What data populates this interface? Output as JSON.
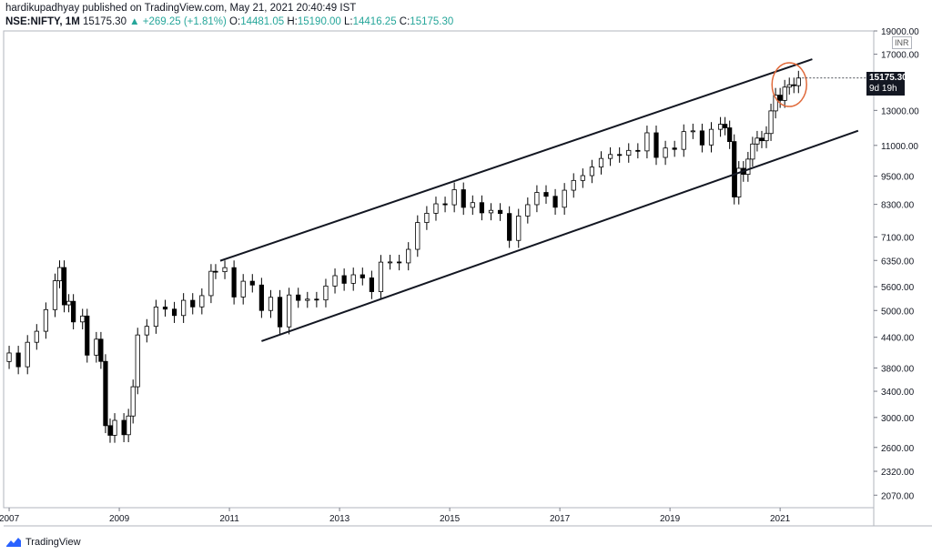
{
  "header": {
    "publisher_line": "hardikupadhyay published on TradingView.com, May 21, 2021 20:40:49 IST",
    "symbol": "NSE:NIFTY, 1M",
    "last": "15175.30",
    "change": "+269.25 (+1.81%)",
    "open_label": "O:",
    "open": "14481.05",
    "high_label": "H:",
    "high": "15190.00",
    "low_label": "L:",
    "low": "14416.25",
    "close_label": "C:",
    "close": "15175.30"
  },
  "price_tag": {
    "price": "15175.30",
    "countdown": "9d 19h"
  },
  "currency_badge": "INR",
  "footer": {
    "brand": "TradingView"
  },
  "colors": {
    "candle_up": "#ffffff",
    "candle_down": "#000000",
    "wick": "#000000",
    "highlight": "#e06a3b",
    "grid": "#e0e3eb"
  },
  "chart_data": {
    "type": "candlestick",
    "symbol": "NSE:NIFTY",
    "interval": "1M",
    "y_scale": "log",
    "ylim": [
      1950,
      19000
    ],
    "y_ticks": [
      "19000.00",
      "17000.00",
      "15175.30",
      "13000.00",
      "11000.00",
      "9500.00",
      "8300.00",
      "7100.00",
      "6350.00",
      "5600.00",
      "5000.00",
      "4400.00",
      "3800.00",
      "3400.00",
      "3000.00",
      "2600.00",
      "2320.00",
      "2070.00"
    ],
    "x_ticks": [
      "2007",
      "2009",
      "2011",
      "2013",
      "2015",
      "2017",
      "2019",
      "2021"
    ],
    "xlim": [
      2006.9,
      2022.7
    ],
    "close_series": [
      {
        "d": "2007-01",
        "c": 4082
      },
      {
        "d": "2007-03",
        "c": 3822
      },
      {
        "d": "2007-05",
        "c": 4296
      },
      {
        "d": "2007-07",
        "c": 4528
      },
      {
        "d": "2007-09",
        "c": 5021
      },
      {
        "d": "2007-11",
        "c": 5762
      },
      {
        "d": "2007-12",
        "c": 6138
      },
      {
        "d": "2008-01",
        "c": 5137
      },
      {
        "d": "2008-02",
        "c": 5224
      },
      {
        "d": "2008-03",
        "c": 4735
      },
      {
        "d": "2008-05",
        "c": 4870
      },
      {
        "d": "2008-06",
        "c": 4040
      },
      {
        "d": "2008-08",
        "c": 4360
      },
      {
        "d": "2008-09",
        "c": 3921
      },
      {
        "d": "2008-10",
        "c": 2885
      },
      {
        "d": "2008-11",
        "c": 2755
      },
      {
        "d": "2008-12",
        "c": 2959
      },
      {
        "d": "2009-02",
        "c": 2763
      },
      {
        "d": "2009-03",
        "c": 3021
      },
      {
        "d": "2009-04",
        "c": 3474
      },
      {
        "d": "2009-05",
        "c": 4449
      },
      {
        "d": "2009-07",
        "c": 4636
      },
      {
        "d": "2009-09",
        "c": 5084
      },
      {
        "d": "2009-11",
        "c": 5033
      },
      {
        "d": "2010-01",
        "c": 4882
      },
      {
        "d": "2010-03",
        "c": 5249
      },
      {
        "d": "2010-05",
        "c": 5087
      },
      {
        "d": "2010-07",
        "c": 5368
      },
      {
        "d": "2010-09",
        "c": 6030
      },
      {
        "d": "2010-10",
        "c": 6018
      },
      {
        "d": "2010-12",
        "c": 6135
      },
      {
        "d": "2011-02",
        "c": 5333
      },
      {
        "d": "2011-04",
        "c": 5750
      },
      {
        "d": "2011-06",
        "c": 5647
      },
      {
        "d": "2011-08",
        "c": 5001
      },
      {
        "d": "2011-10",
        "c": 5326
      },
      {
        "d": "2011-12",
        "c": 4624
      },
      {
        "d": "2012-02",
        "c": 5385
      },
      {
        "d": "2012-04",
        "c": 5248
      },
      {
        "d": "2012-06",
        "c": 5279
      },
      {
        "d": "2012-08",
        "c": 5259
      },
      {
        "d": "2012-10",
        "c": 5620
      },
      {
        "d": "2012-12",
        "c": 5905
      },
      {
        "d": "2013-02",
        "c": 5693
      },
      {
        "d": "2013-04",
        "c": 5930
      },
      {
        "d": "2013-06",
        "c": 5842
      },
      {
        "d": "2013-08",
        "c": 5471
      },
      {
        "d": "2013-10",
        "c": 6299
      },
      {
        "d": "2013-12",
        "c": 6304
      },
      {
        "d": "2014-02",
        "c": 6277
      },
      {
        "d": "2014-04",
        "c": 6696
      },
      {
        "d": "2014-06",
        "c": 7611
      },
      {
        "d": "2014-08",
        "c": 7954
      },
      {
        "d": "2014-10",
        "c": 8322
      },
      {
        "d": "2014-12",
        "c": 8283
      },
      {
        "d": "2015-02",
        "c": 8902
      },
      {
        "d": "2015-04",
        "c": 8182
      },
      {
        "d": "2015-06",
        "c": 8369
      },
      {
        "d": "2015-08",
        "c": 7971
      },
      {
        "d": "2015-10",
        "c": 8066
      },
      {
        "d": "2015-12",
        "c": 7946
      },
      {
        "d": "2016-02",
        "c": 6987
      },
      {
        "d": "2016-04",
        "c": 7850
      },
      {
        "d": "2016-06",
        "c": 8288
      },
      {
        "d": "2016-08",
        "c": 8786
      },
      {
        "d": "2016-10",
        "c": 8626
      },
      {
        "d": "2016-12",
        "c": 8186
      },
      {
        "d": "2017-02",
        "c": 8880
      },
      {
        "d": "2017-04",
        "c": 9304
      },
      {
        "d": "2017-06",
        "c": 9521
      },
      {
        "d": "2017-08",
        "c": 9918
      },
      {
        "d": "2017-10",
        "c": 10335
      },
      {
        "d": "2017-12",
        "c": 10531
      },
      {
        "d": "2018-02",
        "c": 10493
      },
      {
        "d": "2018-04",
        "c": 10739
      },
      {
        "d": "2018-06",
        "c": 10714
      },
      {
        "d": "2018-08",
        "c": 11681
      },
      {
        "d": "2018-10",
        "c": 10386
      },
      {
        "d": "2018-12",
        "c": 10863
      },
      {
        "d": "2019-02",
        "c": 10793
      },
      {
        "d": "2019-04",
        "c": 11748
      },
      {
        "d": "2019-06",
        "c": 11789
      },
      {
        "d": "2019-08",
        "c": 11023
      },
      {
        "d": "2019-10",
        "c": 11877
      },
      {
        "d": "2019-12",
        "c": 12168
      },
      {
        "d": "2020-01",
        "c": 11962
      },
      {
        "d": "2020-02",
        "c": 11202
      },
      {
        "d": "2020-03",
        "c": 8598
      },
      {
        "d": "2020-04",
        "c": 9860
      },
      {
        "d": "2020-05",
        "c": 9580
      },
      {
        "d": "2020-06",
        "c": 10302
      },
      {
        "d": "2020-07",
        "c": 11073
      },
      {
        "d": "2020-08",
        "c": 11388
      },
      {
        "d": "2020-09",
        "c": 11248
      },
      {
        "d": "2020-10",
        "c": 11642
      },
      {
        "d": "2020-11",
        "c": 12969
      },
      {
        "d": "2020-12",
        "c": 13982
      },
      {
        "d": "2021-01",
        "c": 13635
      },
      {
        "d": "2021-02",
        "c": 14529
      },
      {
        "d": "2021-03",
        "c": 14691
      },
      {
        "d": "2021-04",
        "c": 14631
      },
      {
        "d": "2021-05",
        "c": 15175
      }
    ],
    "trendlines": [
      {
        "from": {
          "d": "2010-11",
          "v": 6340
        },
        "to": {
          "d": "2021-08",
          "v": 16600
        }
      },
      {
        "from": {
          "d": "2011-08",
          "v": 4320
        },
        "to": {
          "d": "2022-06",
          "v": 11800
        }
      }
    ],
    "annotation": {
      "type": "ellipse",
      "d": "2021-03",
      "v": 14700
    }
  }
}
